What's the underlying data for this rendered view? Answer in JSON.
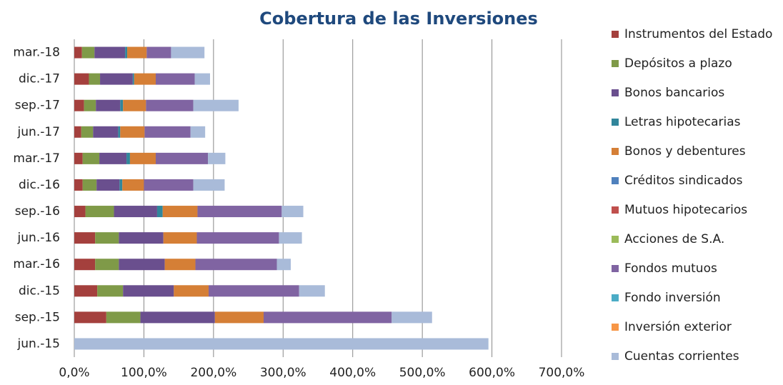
{
  "chart_data": {
    "type": "stacked_barh",
    "title": "Cobertura de las Inversiones",
    "categories": [
      "jun.-15",
      "sep.-15",
      "dic.-15",
      "mar.-16",
      "jun.-16",
      "sep.-16",
      "dic.-16",
      "mar.-17",
      "jun.-17",
      "sep.-17",
      "dic.-17",
      "mar.-18"
    ],
    "series": [
      {
        "name": "Instrumentos del Estado",
        "color": "#a4403d",
        "values": [
          0,
          46,
          33,
          30,
          30,
          16,
          12,
          12,
          10,
          14,
          21,
          11
        ]
      },
      {
        "name": "Depósitos a plazo",
        "color": "#7f9a48",
        "values": [
          0,
          49,
          37,
          34,
          34,
          41,
          20,
          24,
          17,
          17,
          16,
          18
        ]
      },
      {
        "name": "Bonos bancarios",
        "color": "#6a4f8e",
        "values": [
          0,
          107,
          73,
          66,
          64,
          62,
          33,
          39,
          36,
          35,
          47,
          44
        ]
      },
      {
        "name": "Letras hipotecarias",
        "color": "#31869b",
        "values": [
          0,
          0,
          0,
          0,
          0,
          8,
          4,
          5,
          3,
          4,
          2,
          3
        ]
      },
      {
        "name": "Bonos y debentures",
        "color": "#d57f36",
        "values": [
          0,
          70,
          50,
          44,
          48,
          50,
          31,
          37,
          35,
          33,
          31,
          28
        ]
      },
      {
        "name": "Créditos sindicados",
        "color": "#4f81bd",
        "values": [
          0,
          0,
          0,
          0,
          0,
          0,
          0,
          0,
          0,
          0,
          0,
          0
        ]
      },
      {
        "name": "Mutuos hipotecarios",
        "color": "#c0504d",
        "values": [
          0,
          0,
          0,
          0,
          0,
          0,
          0,
          0,
          0,
          0,
          0,
          0
        ]
      },
      {
        "name": "Acciones de S.A.",
        "color": "#9bbb59",
        "values": [
          0,
          0,
          0,
          0,
          0,
          0,
          0,
          0,
          0,
          0,
          0,
          0
        ]
      },
      {
        "name": "Fondos mutuos",
        "color": "#8064a2",
        "values": [
          0,
          184,
          130,
          117,
          118,
          121,
          71,
          75,
          66,
          68,
          56,
          35
        ]
      },
      {
        "name": "Fondo inversión",
        "color": "#4bacc6",
        "values": [
          0,
          0,
          0,
          0,
          0,
          0,
          0,
          0,
          0,
          0,
          0,
          0
        ]
      },
      {
        "name": "Inversión exterior",
        "color": "#f79646",
        "values": [
          0,
          0,
          0,
          0,
          0,
          0,
          0,
          0,
          0,
          0,
          0,
          0
        ]
      },
      {
        "name": "Cuentas corrientes",
        "color": "#a9bbd9",
        "values": [
          595,
          58,
          37,
          20,
          33,
          31,
          45,
          25,
          21,
          65,
          22,
          48
        ]
      }
    ],
    "xlim": [
      0,
      700
    ],
    "xticks": [
      {
        "value": 0,
        "label": "0,0%"
      },
      {
        "value": 100,
        "label": "100,0%"
      },
      {
        "value": 200,
        "label": "200,0%"
      },
      {
        "value": 300,
        "label": "300,0%"
      },
      {
        "value": 400,
        "label": "400,0%"
      },
      {
        "value": 500,
        "label": "500,0%"
      },
      {
        "value": 600,
        "label": "600,0%"
      },
      {
        "value": 700,
        "label": "700,0%"
      }
    ],
    "grid": true,
    "legend": "right"
  }
}
